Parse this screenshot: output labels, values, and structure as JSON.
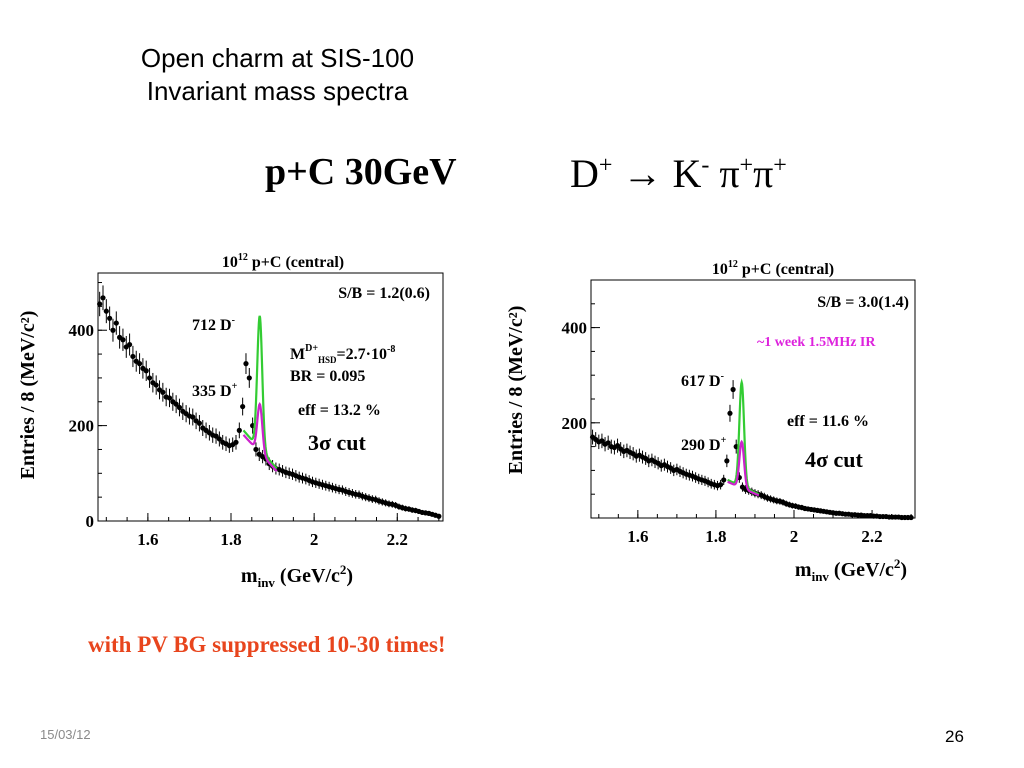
{
  "slide": {
    "title_line1": "Open charm at SIS-100",
    "title_line2": "Invariant mass spectra",
    "reaction": "p+C 30GeV",
    "decay": {
      "d": "D",
      "d_sup": "+",
      "arrow": "→",
      "k": "K",
      "k_sup": "-",
      "pi1": "π",
      "pi1_sup": "+",
      "pi2": "π",
      "pi2_sup": "+"
    },
    "footnote": "with PV BG suppressed 10-30 times!",
    "date": "15/03/12",
    "page_number": "26"
  },
  "colors": {
    "points": "#000000",
    "total_fit": "#33cc33",
    "signal_fit": "#cc22cc",
    "footnote": "#e8451d",
    "ir_text": "#dd22dd"
  },
  "chart_data": [
    {
      "type": "scatter",
      "panel": "left",
      "title": {
        "base": "10",
        "exp": "12",
        "rest": "  p+C (central)"
      },
      "xlabel": {
        "main": "m",
        "sub": "inv",
        "rest": " (GeV/c",
        "sup": "2",
        "end": ")"
      },
      "ylabel": "Entries / 8 (MeV/c²)",
      "xlim": [
        1.48,
        2.31
      ],
      "ylim": [
        0,
        520
      ],
      "xticks": [
        {
          "v": 1.6,
          "label": "1.6"
        },
        {
          "v": 1.8,
          "label": "1.8"
        },
        {
          "v": 2.0,
          "label": "2"
        },
        {
          "v": 2.2,
          "label": "2.2"
        }
      ],
      "yticks": [
        {
          "v": 0,
          "label": "0"
        },
        {
          "v": 200,
          "label": "200"
        },
        {
          "v": 400,
          "label": "400"
        }
      ],
      "x": [
        1.484,
        1.492,
        1.5,
        1.508,
        1.516,
        1.524,
        1.532,
        1.54,
        1.548,
        1.556,
        1.564,
        1.572,
        1.58,
        1.588,
        1.596,
        1.604,
        1.612,
        1.62,
        1.628,
        1.636,
        1.644,
        1.652,
        1.66,
        1.668,
        1.676,
        1.684,
        1.692,
        1.7,
        1.708,
        1.716,
        1.724,
        1.732,
        1.74,
        1.748,
        1.756,
        1.764,
        1.772,
        1.78,
        1.788,
        1.796,
        1.804,
        1.812,
        1.82,
        1.828,
        1.836,
        1.844,
        1.852,
        1.86,
        1.868,
        1.876,
        1.884,
        1.892,
        1.9,
        1.908,
        1.916,
        1.924,
        1.932,
        1.94,
        1.948,
        1.956,
        1.964,
        1.972,
        1.98,
        1.988,
        1.996,
        2.004,
        2.012,
        2.02,
        2.028,
        2.036,
        2.044,
        2.052,
        2.06,
        2.068,
        2.076,
        2.084,
        2.092,
        2.1,
        2.108,
        2.116,
        2.124,
        2.132,
        2.14,
        2.148,
        2.156,
        2.164,
        2.172,
        2.18,
        2.188,
        2.196,
        2.204,
        2.212,
        2.22,
        2.228,
        2.236,
        2.244,
        2.252,
        2.26,
        2.268,
        2.276,
        2.284,
        2.292,
        2.3
      ],
      "y": [
        455,
        468,
        440,
        425,
        400,
        415,
        385,
        380,
        365,
        370,
        345,
        335,
        330,
        320,
        315,
        300,
        290,
        285,
        275,
        270,
        260,
        258,
        250,
        245,
        238,
        230,
        225,
        220,
        218,
        210,
        205,
        195,
        190,
        185,
        180,
        178,
        172,
        165,
        162,
        158,
        160,
        165,
        190,
        240,
        330,
        300,
        200,
        150,
        140,
        135,
        130,
        120,
        115,
        110,
        108,
        105,
        102,
        100,
        98,
        95,
        92,
        90,
        88,
        85,
        82,
        80,
        78,
        76,
        74,
        72,
        70,
        68,
        66,
        65,
        62,
        60,
        58,
        56,
        55,
        52,
        50,
        48,
        46,
        45,
        42,
        40,
        38,
        36,
        35,
        33,
        30,
        28,
        26,
        25,
        23,
        22,
        20,
        18,
        17,
        16,
        14,
        12,
        10
      ],
      "signal_peak_x": 1.869,
      "signal_sigma": 0.006,
      "total_fit_peak": 430,
      "signal_fit_peak": 245,
      "fit_xrange": [
        1.83,
        1.91
      ],
      "annotations": {
        "sb": "S/B = 1.2(0.6)",
        "peak_total": {
          "num": "712 D",
          "sup": "-"
        },
        "peak_signal": {
          "num": "335 D",
          "sup": "+"
        },
        "mass": {
          "m": "M",
          "sup": "D+",
          "sub": "HSD",
          "rest": "=2.7·10",
          "exp": "-8"
        },
        "br": "BR = 0.095",
        "eff": "eff = 13.2 %",
        "cut": {
          "n": "3",
          "sigma": "σ",
          "rest": " cut"
        }
      }
    },
    {
      "type": "scatter",
      "panel": "right",
      "title": {
        "base": "10",
        "exp": "12",
        "rest": " p+C (central)"
      },
      "xlabel": {
        "main": "m",
        "sub": "inv",
        "rest": " (GeV/c",
        "sup": "2",
        "end": ")"
      },
      "ylabel": "Entries / 8 (MeV/c²)",
      "xlim": [
        1.48,
        2.31
      ],
      "ylim": [
        0,
        500
      ],
      "xticks": [
        {
          "v": 1.6,
          "label": "1.6"
        },
        {
          "v": 1.8,
          "label": "1.8"
        },
        {
          "v": 2.0,
          "label": "2"
        },
        {
          "v": 2.2,
          "label": "2.2"
        }
      ],
      "yticks": [
        {
          "v": 200,
          "label": "200"
        },
        {
          "v": 400,
          "label": "400"
        }
      ],
      "x": [
        1.484,
        1.492,
        1.5,
        1.508,
        1.516,
        1.524,
        1.532,
        1.54,
        1.548,
        1.556,
        1.564,
        1.572,
        1.58,
        1.588,
        1.596,
        1.604,
        1.612,
        1.62,
        1.628,
        1.636,
        1.644,
        1.652,
        1.66,
        1.668,
        1.676,
        1.684,
        1.692,
        1.7,
        1.708,
        1.716,
        1.724,
        1.732,
        1.74,
        1.748,
        1.756,
        1.764,
        1.772,
        1.78,
        1.788,
        1.796,
        1.804,
        1.812,
        1.82,
        1.828,
        1.836,
        1.844,
        1.852,
        1.86,
        1.868,
        1.876,
        1.884,
        1.892,
        1.9,
        1.908,
        1.916,
        1.924,
        1.932,
        1.94,
        1.948,
        1.956,
        1.964,
        1.972,
        1.98,
        1.988,
        1.996,
        2.004,
        2.012,
        2.02,
        2.028,
        2.036,
        2.044,
        2.052,
        2.06,
        2.068,
        2.076,
        2.084,
        2.092,
        2.1,
        2.108,
        2.116,
        2.124,
        2.132,
        2.14,
        2.148,
        2.156,
        2.164,
        2.172,
        2.18,
        2.188,
        2.196,
        2.204,
        2.212,
        2.22,
        2.228,
        2.236,
        2.244,
        2.252,
        2.26,
        2.268,
        2.276,
        2.284,
        2.292,
        2.3
      ],
      "y": [
        170,
        165,
        160,
        162,
        155,
        158,
        150,
        148,
        152,
        145,
        140,
        142,
        138,
        135,
        130,
        132,
        128,
        125,
        120,
        122,
        118,
        115,
        110,
        112,
        108,
        105,
        100,
        102,
        98,
        95,
        92,
        90,
        88,
        85,
        82,
        80,
        78,
        75,
        72,
        70,
        68,
        70,
        80,
        120,
        220,
        270,
        150,
        85,
        65,
        60,
        58,
        55,
        52,
        50,
        48,
        45,
        42,
        40,
        38,
        36,
        35,
        33,
        30,
        28,
        26,
        25,
        23,
        22,
        20,
        19,
        18,
        17,
        16,
        15,
        14,
        13,
        12,
        11,
        10,
        10,
        9,
        8,
        8,
        7,
        7,
        6,
        6,
        5,
        5,
        5,
        4,
        4,
        3,
        3,
        3,
        2,
        2,
        2,
        2,
        1,
        1,
        1,
        1
      ],
      "signal_peak_x": 1.866,
      "signal_sigma": 0.006,
      "total_fit_peak": 285,
      "signal_fit_peak": 160,
      "fit_xrange": [
        1.83,
        1.91
      ],
      "annotations": {
        "sb": "S/B = 3.0(1.4)",
        "ir": "~1 week  1.5MHz IR",
        "peak_total": {
          "num": "617 D",
          "sup": "-"
        },
        "peak_signal": {
          "num": "290 D",
          "sup": "+"
        },
        "eff": "eff = 11.6 %",
        "cut": {
          "n": "4",
          "sigma": "σ",
          "rest": " cut"
        }
      }
    }
  ]
}
